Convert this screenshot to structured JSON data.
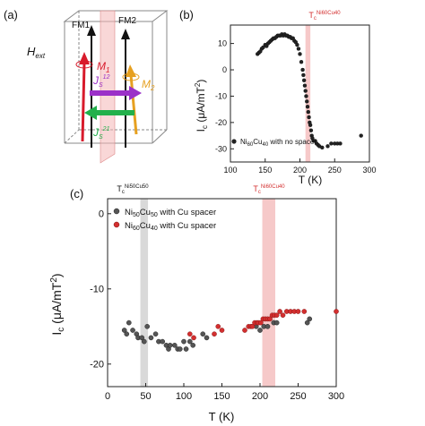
{
  "panel_labels": {
    "a": "(a)",
    "b": "(b)",
    "c": "(c)"
  },
  "schematic": {
    "layer_left": "FM1",
    "layer_right": "FM2",
    "field_label": "H",
    "field_sub": "ext",
    "m1_label": "M",
    "m1_sub": "1",
    "m2_label": "M",
    "m2_sub": "2",
    "js12_label": "J",
    "js12_sub": "S",
    "js12_sup": "12",
    "js21_label": "J",
    "js21_sub": "S",
    "js21_sup": "21",
    "colors": {
      "m1": "#d81b2c",
      "m2": "#e6a020",
      "field": "#111111",
      "js12": "#9b30c8",
      "js21": "#22b04b",
      "interface": "#f4b6b6"
    }
  },
  "chart_data": [
    {
      "id": "b",
      "type": "scatter",
      "ylabel_main": "I",
      "ylabel_sub": "c",
      "ylabel_rest": " (μA/mT",
      "ylabel_sup": "2",
      "ylabel_end": ")",
      "xlabel": "T (K)",
      "xlim": [
        100,
        300
      ],
      "ylim": [
        -35,
        17
      ],
      "xticks": [
        100,
        150,
        200,
        250,
        300
      ],
      "yticks": [
        -30,
        -20,
        -10,
        0,
        10
      ],
      "grid": false,
      "legend_position": "bottom-left",
      "band": {
        "x0": 208,
        "x1": 215,
        "color": "#f6c9c9"
      },
      "band_label": {
        "base": "T",
        "sub": "c",
        "sup": "Ni60Cu40",
        "color": "#d32f2f"
      },
      "series": [
        {
          "name": "Ni60Cu40 with no spacer",
          "name_base": "Ni",
          "name_sub1": "60",
          "name_mid": "Cu",
          "name_sub2": "40",
          "name_tail": " with no spacer",
          "color": "#222222",
          "points": [
            [
              139,
              6
            ],
            [
              141,
              6.5
            ],
            [
              143,
              7
            ],
            [
              145,
              8
            ],
            [
              147,
              8.5
            ],
            [
              150,
              9.5
            ],
            [
              152,
              9
            ],
            [
              154,
              10
            ],
            [
              156,
              10.5
            ],
            [
              158,
              11
            ],
            [
              160,
              11.5
            ],
            [
              162,
              12
            ],
            [
              164,
              12
            ],
            [
              166,
              12.5
            ],
            [
              168,
              13
            ],
            [
              170,
              13
            ],
            [
              172,
              13
            ],
            [
              174,
              13.5
            ],
            [
              176,
              13
            ],
            [
              178,
              13.5
            ],
            [
              180,
              13
            ],
            [
              182,
              13
            ],
            [
              184,
              12.5
            ],
            [
              186,
              12.5
            ],
            [
              188,
              12
            ],
            [
              190,
              12
            ],
            [
              192,
              11
            ],
            [
              194,
              10.5
            ],
            [
              196,
              9.5
            ],
            [
              198,
              8
            ],
            [
              200,
              6
            ],
            [
              202,
              3
            ],
            [
              204,
              0
            ],
            [
              205,
              -2
            ],
            [
              206,
              -4
            ],
            [
              207,
              -6
            ],
            [
              208,
              -8
            ],
            [
              209,
              -10
            ],
            [
              210,
              -12
            ],
            [
              211,
              -14
            ],
            [
              212,
              -16
            ],
            [
              213,
              -18
            ],
            [
              214,
              -20
            ],
            [
              215,
              -21
            ],
            [
              216,
              -23
            ],
            [
              217,
              -25
            ],
            [
              218,
              -26
            ],
            [
              220,
              -27
            ],
            [
              222,
              -27
            ],
            [
              224,
              -28
            ],
            [
              226,
              -28.5
            ],
            [
              228,
              -29
            ],
            [
              232,
              -29.5
            ],
            [
              240,
              -29
            ],
            [
              245,
              -28
            ],
            [
              250,
              -28
            ],
            [
              254,
              -28
            ],
            [
              258,
              -28
            ],
            [
              288,
              -25
            ]
          ]
        }
      ]
    },
    {
      "id": "c",
      "type": "scatter",
      "ylabel_main": "I",
      "ylabel_sub": "c",
      "ylabel_rest": " (μA/mT",
      "ylabel_sup": "2",
      "ylabel_end": ")",
      "xlabel": "T (K)",
      "xlim": [
        0,
        300
      ],
      "ylim": [
        -23,
        2
      ],
      "xticks": [
        0,
        50,
        100,
        150,
        200,
        250,
        300
      ],
      "yticks": [
        -20,
        -10,
        0
      ],
      "grid": false,
      "legend_position": "top-left",
      "bands": [
        {
          "x0": 43,
          "x1": 53,
          "color": "#d9d9d9"
        },
        {
          "x0": 203,
          "x1": 220,
          "color": "#f6c9c9"
        }
      ],
      "band_labels": [
        {
          "base": "T",
          "sub": "c",
          "sup": "Ni50Cu50",
          "color": "#111111",
          "x": 48
        },
        {
          "base": "T",
          "sub": "c",
          "sup": "Ni60Cu40",
          "color": "#d32f2f",
          "x": 211
        }
      ],
      "series": [
        {
          "name": "Ni50Cu50 with Cu spacer",
          "name_base": "Ni",
          "name_sub1": "50",
          "name_mid": "Cu",
          "name_sub2": "50",
          "name_tail": " with Cu spacer",
          "color": "#555555",
          "points": [
            [
              22,
              -15.5
            ],
            [
              25,
              -16
            ],
            [
              28,
              -14.5
            ],
            [
              33,
              -15.5
            ],
            [
              38,
              -16
            ],
            [
              40,
              -16.5
            ],
            [
              45,
              -16.5
            ],
            [
              48,
              -17
            ],
            [
              52,
              -15
            ],
            [
              57,
              -16.5
            ],
            [
              63,
              -16
            ],
            [
              67,
              -17
            ],
            [
              72,
              -17
            ],
            [
              77,
              -17.5
            ],
            [
              80,
              -18
            ],
            [
              82,
              -17.5
            ],
            [
              88,
              -17.5
            ],
            [
              92,
              -18
            ],
            [
              95,
              -18
            ],
            [
              100,
              -17
            ],
            [
              103,
              -18
            ],
            [
              108,
              -17
            ],
            [
              112,
              -17.5
            ],
            [
              125,
              -16
            ],
            [
              130,
              -16.5
            ],
            [
              195,
              -15
            ],
            [
              200,
              -15.5
            ],
            [
              205,
              -15
            ],
            [
              210,
              -15
            ],
            [
              218,
              -14.5
            ],
            [
              222,
              -14.5
            ],
            [
              262,
              -14.5
            ],
            [
              265,
              -14
            ]
          ]
        },
        {
          "name": "Ni60Cu40 with Cu spacer",
          "name_base": "Ni",
          "name_sub1": "60",
          "name_mid": "Cu",
          "name_sub2": "40",
          "name_tail": " with Cu spacer",
          "color": "#d32f2f",
          "points": [
            [
              108,
              -16
            ],
            [
              113,
              -16.5
            ],
            [
              140,
              -16
            ],
            [
              145,
              -15
            ],
            [
              150,
              -15.5
            ],
            [
              180,
              -15.5
            ],
            [
              185,
              -15
            ],
            [
              188,
              -15
            ],
            [
              190,
              -15
            ],
            [
              193,
              -14.5
            ],
            [
              196,
              -14.5
            ],
            [
              198,
              -14.5
            ],
            [
              201,
              -14.5
            ],
            [
              204,
              -14
            ],
            [
              207,
              -14
            ],
            [
              210,
              -14
            ],
            [
              213,
              -14
            ],
            [
              216,
              -13.5
            ],
            [
              219,
              -13.5
            ],
            [
              222,
              -13.5
            ],
            [
              226,
              -13
            ],
            [
              230,
              -13.5
            ],
            [
              235,
              -13
            ],
            [
              240,
              -13
            ],
            [
              245,
              -13
            ],
            [
              250,
              -13
            ],
            [
              258,
              -13
            ],
            [
              300,
              -13
            ]
          ]
        }
      ]
    }
  ]
}
